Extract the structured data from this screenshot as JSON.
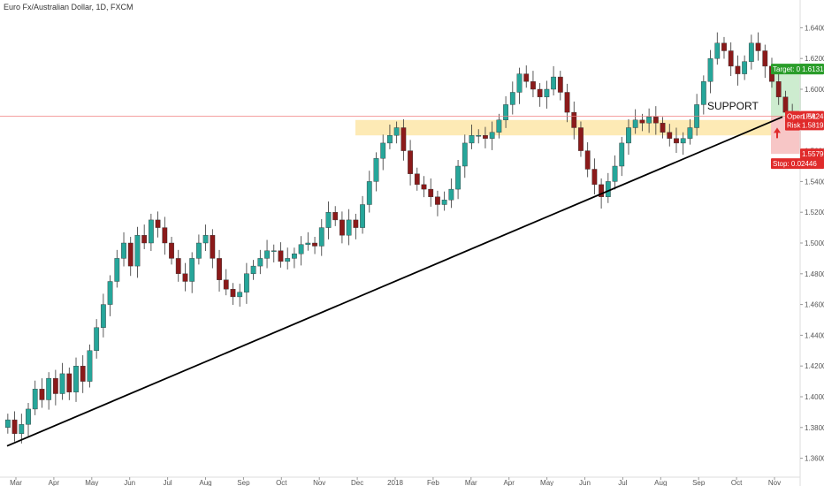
{
  "header": {
    "title": "Euro Fx/Australian Dollar, 1D, FXCM"
  },
  "colors": {
    "up": "#26a69a",
    "down": "#8b1a1a",
    "wick": "#333333",
    "trendline": "#000000",
    "support_zone": "#fde6a8",
    "target_zone": "#cdeccf",
    "stop_zone": "#f7c6c6",
    "target_tag": "#2a9d2a",
    "stop_tag": "#e02b2b",
    "price_tag": "#e02b2b",
    "hline": "#f08080"
  },
  "labels": {
    "support": "SUPPORT",
    "target": "Target: 0.03072",
    "stop": "Stop: 0.02446",
    "open_pl": "Open P/L",
    "risk": "Risk",
    "target_price": "1.61313",
    "current_price": "1.58241",
    "entry_price": "1.58195",
    "stop_price": "1.55796"
  },
  "chart_data": {
    "type": "candlestick",
    "title": "Euro Fx/Australian Dollar, 1D, FXCM",
    "y_ticks": [
      "1.64000",
      "1.62000",
      "1.60000",
      "1.58000",
      "1.56000",
      "1.54000",
      "1.52000",
      "1.50000",
      "1.48000",
      "1.46000",
      "1.44000",
      "1.42000",
      "1.40000",
      "1.38000",
      "1.36000"
    ],
    "ylim": [
      1.35,
      1.65
    ],
    "x_ticks": [
      "Mar",
      "Apr",
      "May",
      "Jun",
      "Jul",
      "Aug",
      "Sep",
      "Oct",
      "Nov",
      "Dec",
      "2018",
      "Feb",
      "Mar",
      "Apr",
      "May",
      "Jun",
      "Jul",
      "Aug",
      "Sep",
      "Oct",
      "Nov"
    ],
    "series_close": [
      1.385,
      1.376,
      1.382,
      1.392,
      1.405,
      1.398,
      1.412,
      1.402,
      1.415,
      1.403,
      1.42,
      1.41,
      1.43,
      1.445,
      1.46,
      1.475,
      1.49,
      1.5,
      1.485,
      1.505,
      1.5,
      1.515,
      1.51,
      1.5,
      1.49,
      1.48,
      1.475,
      1.49,
      1.5,
      1.505,
      1.49,
      1.476,
      1.47,
      1.465,
      1.468,
      1.48,
      1.485,
      1.49,
      1.495,
      1.495,
      1.488,
      1.49,
      1.493,
      1.499,
      1.5,
      1.498,
      1.51,
      1.52,
      1.515,
      1.505,
      1.515,
      1.51,
      1.525,
      1.54,
      1.555,
      1.565,
      1.57,
      1.575,
      1.56,
      1.545,
      1.538,
      1.535,
      1.53,
      1.525,
      1.528,
      1.535,
      1.55,
      1.565,
      1.57,
      1.57,
      1.568,
      1.572,
      1.58,
      1.59,
      1.598,
      1.61,
      1.605,
      1.6,
      1.595,
      1.6,
      1.608,
      1.598,
      1.585,
      1.575,
      1.56,
      1.548,
      1.538,
      1.53,
      1.54,
      1.55,
      1.565,
      1.575,
      1.58,
      1.578,
      1.582,
      1.578,
      1.572,
      1.568,
      1.565,
      1.568,
      1.575,
      1.59,
      1.605,
      1.62,
      1.63,
      1.625,
      1.615,
      1.61,
      1.618,
      1.63,
      1.625,
      1.615,
      1.605,
      1.595,
      1.585,
      1.582
    ],
    "trendline": {
      "from": {
        "x_label": "Feb",
        "y": 1.368
      },
      "to": {
        "x_label": "Nov",
        "y": 1.582
      }
    },
    "support_zone": [
      1.57,
      1.58
    ],
    "position": {
      "entry": 1.58195,
      "target": 1.61313,
      "stop": 1.55796,
      "current": 1.58241
    }
  }
}
